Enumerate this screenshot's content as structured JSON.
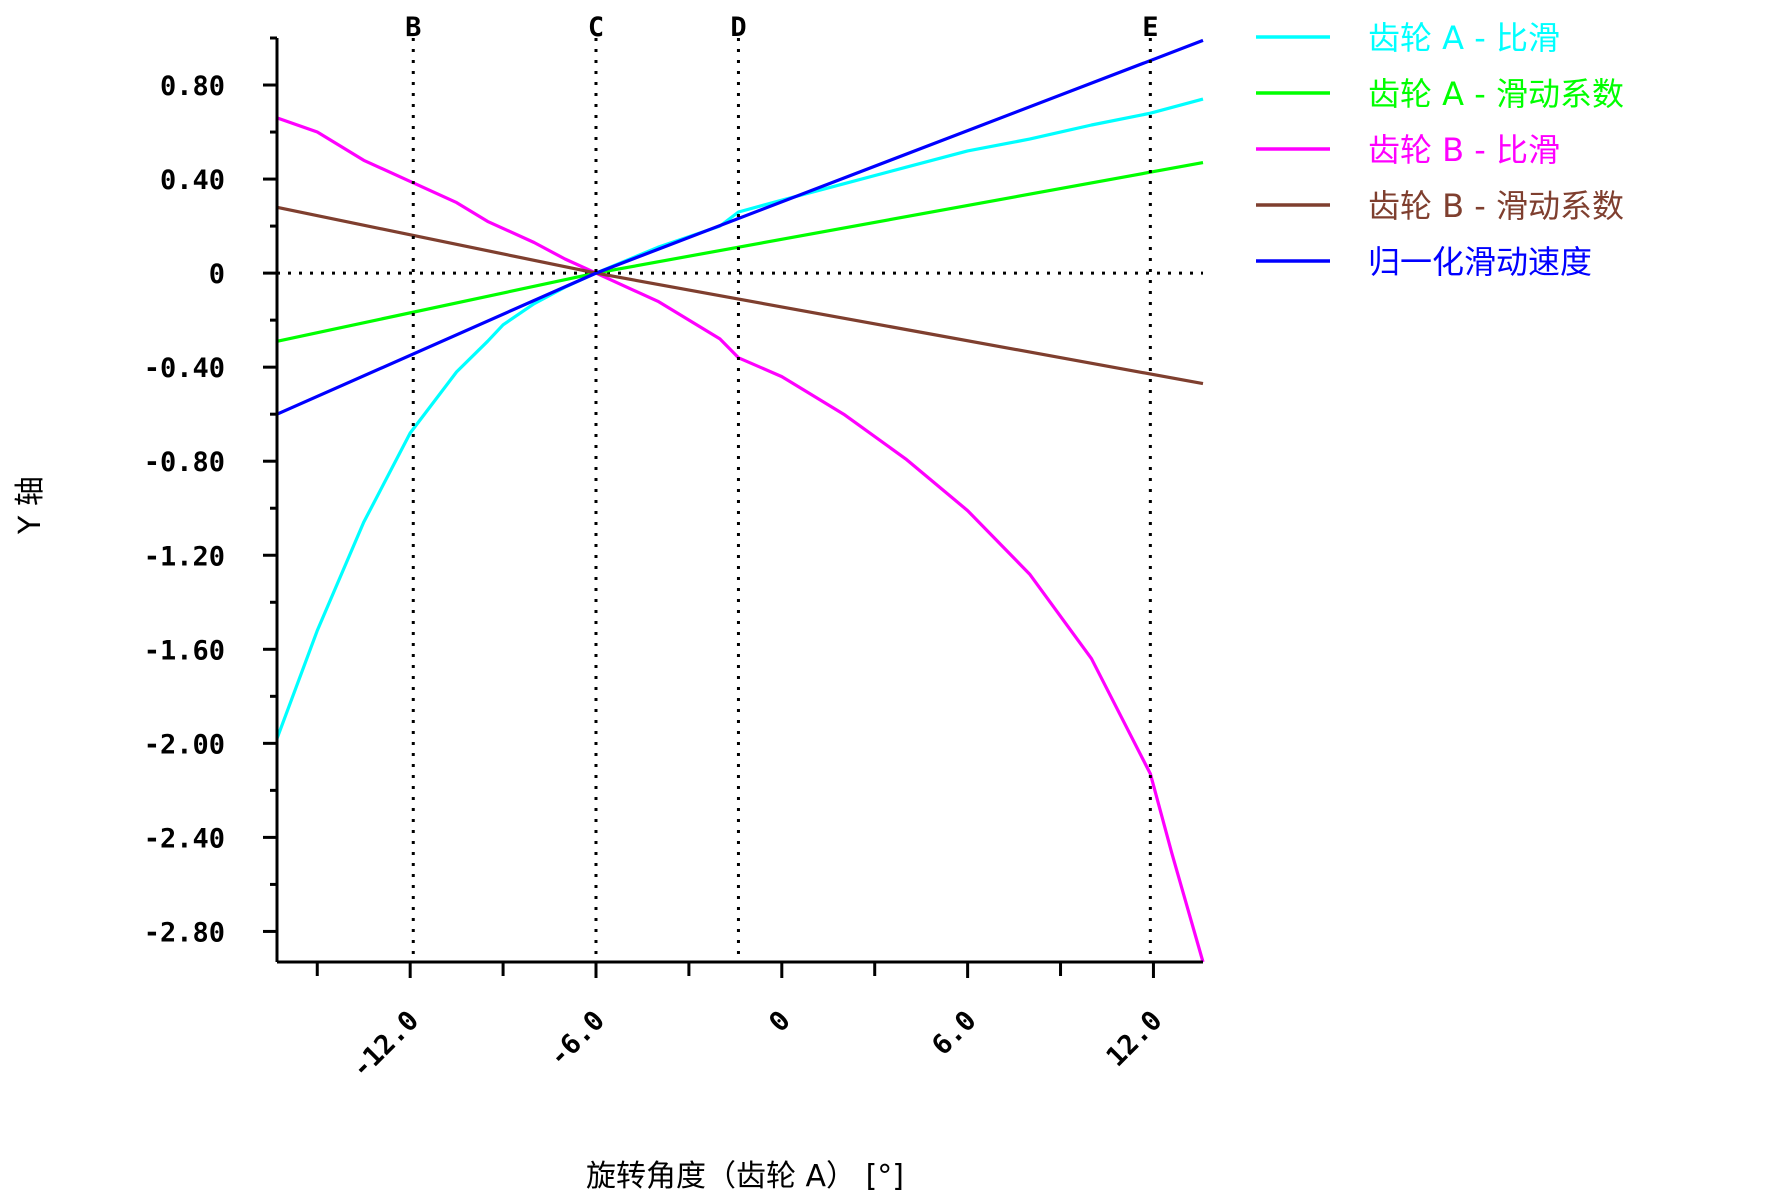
{
  "chart_data": {
    "type": "line",
    "xlabel": "旋转角度（齿轮 A） [°]",
    "ylabel": "Y 轴",
    "xlim": [
      -16.3,
      13.6
    ],
    "ylim": [
      -2.93,
      1.0
    ],
    "x_ticks": [
      {
        "value": -12.0,
        "label": "-12.0"
      },
      {
        "value": -6.0,
        "label": "-6.0"
      },
      {
        "value": 0,
        "label": "0"
      },
      {
        "value": 6.0,
        "label": "6.0"
      },
      {
        "value": 12.0,
        "label": "12.0"
      }
    ],
    "x_minor_ticks": [
      -15,
      -9,
      -3,
      3,
      9
    ],
    "y_ticks": [
      {
        "value": 0.8,
        "label": "0.80"
      },
      {
        "value": 0.4,
        "label": "0.40"
      },
      {
        "value": 0,
        "label": "0"
      },
      {
        "value": -0.4,
        "label": "-0.40"
      },
      {
        "value": -0.8,
        "label": "-0.80"
      },
      {
        "value": -1.2,
        "label": "-1.20"
      },
      {
        "value": -1.6,
        "label": "-1.60"
      },
      {
        "value": -2.0,
        "label": "-2.00"
      },
      {
        "value": -2.4,
        "label": "-2.40"
      },
      {
        "value": -2.8,
        "label": "-2.80"
      }
    ],
    "y_minor_ticks": [
      1.0,
      0.6,
      0.2,
      -0.2,
      -0.6,
      -1.0,
      -1.4,
      -1.8,
      -2.2,
      -2.6
    ],
    "markers": [
      {
        "label": "B",
        "x": -11.9
      },
      {
        "label": "C",
        "x": -6.0
      },
      {
        "label": "D",
        "x": -1.4
      },
      {
        "label": "E",
        "x": 11.9
      }
    ],
    "zero_line": true,
    "legend_position": "top-right",
    "series": [
      {
        "name": "齿轮 A - 比滑",
        "color": "#00ffff",
        "points": [
          [
            -16.3,
            -1.98
          ],
          [
            -15.0,
            -1.52
          ],
          [
            -13.5,
            -1.06
          ],
          [
            -12.0,
            -0.68
          ],
          [
            -10.5,
            -0.42
          ],
          [
            -9.5,
            -0.29
          ],
          [
            -9.0,
            -0.22
          ],
          [
            -8.0,
            -0.13
          ],
          [
            -7.0,
            -0.06
          ],
          [
            -6.0,
            0.0
          ],
          [
            -4.0,
            0.11
          ],
          [
            -2.0,
            0.2
          ],
          [
            -1.4,
            0.26
          ],
          [
            0,
            0.31
          ],
          [
            2.0,
            0.38
          ],
          [
            4.0,
            0.45
          ],
          [
            6.0,
            0.52
          ],
          [
            8.0,
            0.57
          ],
          [
            10.0,
            0.63
          ],
          [
            11.9,
            0.68
          ],
          [
            13.6,
            0.74
          ]
        ]
      },
      {
        "name": "齿轮 A - 滑动系数",
        "color": "#00ff00",
        "points": [
          [
            -16.3,
            -0.29
          ],
          [
            -6.0,
            0.0
          ],
          [
            13.6,
            0.47
          ]
        ]
      },
      {
        "name": "齿轮 B - 比滑",
        "color": "#ff00ff",
        "points": [
          [
            -16.3,
            0.66
          ],
          [
            -15.0,
            0.6
          ],
          [
            -13.5,
            0.48
          ],
          [
            -12.0,
            0.39
          ],
          [
            -10.5,
            0.3
          ],
          [
            -9.5,
            0.22
          ],
          [
            -8.0,
            0.13
          ],
          [
            -7.0,
            0.06
          ],
          [
            -6.0,
            0.0
          ],
          [
            -4.0,
            -0.12
          ],
          [
            -2.0,
            -0.28
          ],
          [
            -1.4,
            -0.36
          ],
          [
            0,
            -0.44
          ],
          [
            2.0,
            -0.6
          ],
          [
            4.0,
            -0.79
          ],
          [
            6.0,
            -1.01
          ],
          [
            8.0,
            -1.28
          ],
          [
            10.0,
            -1.64
          ],
          [
            11.9,
            -2.13
          ],
          [
            12.6,
            -2.47
          ],
          [
            13.6,
            -2.93
          ]
        ]
      },
      {
        "name": "齿轮 B - 滑动系数",
        "color": "#7f3f2f",
        "points": [
          [
            -16.3,
            0.28
          ],
          [
            -6.0,
            0.0
          ],
          [
            13.6,
            -0.47
          ]
        ]
      },
      {
        "name": "归一化滑动速度",
        "color": "#0000ff",
        "points": [
          [
            -16.3,
            -0.6
          ],
          [
            -6.0,
            0.0
          ],
          [
            13.6,
            0.99
          ]
        ]
      }
    ]
  }
}
